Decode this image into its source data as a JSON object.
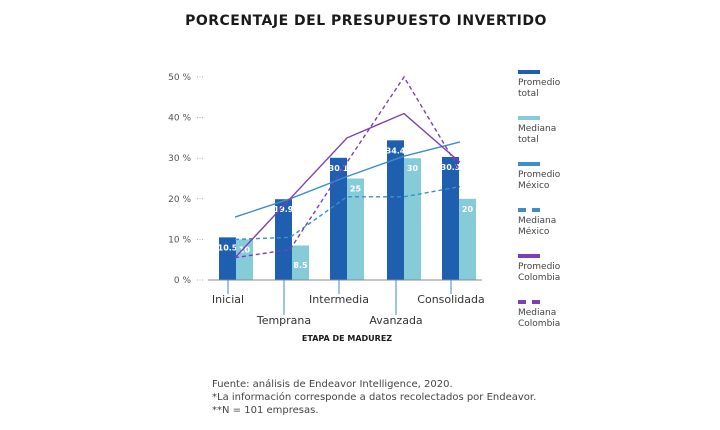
{
  "chart_data": {
    "type": "bar",
    "title": "PORCENTAJE DEL PRESUPUESTO INVERTIDO",
    "xlabel": "ETAPA DE MADUREZ",
    "ylabel": "",
    "ylim": [
      0,
      50
    ],
    "yticks": [
      0,
      10,
      20,
      30,
      40,
      50
    ],
    "ytick_labels": [
      "0 %",
      "10 %",
      "20 %",
      "30 %",
      "40 %",
      "50 %"
    ],
    "categories": [
      "Inicial",
      "Temprana",
      "Intermedia",
      "Avanzada",
      "Consolidada"
    ],
    "bar_series": [
      {
        "name": "Promedio total",
        "color": "#1f5fb0",
        "values": [
          10.5,
          19.9,
          30.1,
          34.4,
          30.3
        ],
        "labels": [
          "10.5",
          "19.9",
          "30.1",
          "34.4",
          "30.3"
        ]
      },
      {
        "name": "Mediana total",
        "color": "#86ccd8",
        "values": [
          10,
          8.5,
          25,
          30,
          20
        ],
        "labels": [
          "10",
          "8.5",
          "25",
          "30",
          "20"
        ]
      }
    ],
    "line_series": [
      {
        "name": "Promedio México",
        "color": "#3d8ec9",
        "dash": "solid",
        "values": [
          15.5,
          20,
          25.5,
          30.5,
          34
        ]
      },
      {
        "name": "Mediana México",
        "color": "#3d8ec9",
        "dash": "dashed",
        "values": [
          10,
          10.5,
          20.5,
          20.5,
          23
        ]
      },
      {
        "name": "Promedio Colombia",
        "color": "#7b3fb8",
        "dash": "solid",
        "values": [
          5.5,
          20,
          35,
          41,
          29
        ]
      },
      {
        "name": "Mediana Colombia",
        "color": "#7b3fb8",
        "dash": "dashed",
        "values": [
          5.5,
          7.5,
          29,
          50,
          27
        ]
      }
    ],
    "legend": [
      {
        "line1": "Promedio",
        "line2": "total",
        "color": "#1f5fb0",
        "style": "solid"
      },
      {
        "line1": "Mediana",
        "line2": "total",
        "color": "#86ccd8",
        "style": "solid"
      },
      {
        "line1": "Promedio",
        "line2": "México",
        "color": "#3d8ec9",
        "style": "solid"
      },
      {
        "line1": "Mediana",
        "line2": "México",
        "color": "#3d8ec9",
        "style": "dashed"
      },
      {
        "line1": "Promedio",
        "line2": "Colombia",
        "color": "#7b3fb8",
        "style": "solid"
      },
      {
        "line1": "Mediana",
        "line2": "Colombia",
        "color": "#7b3fb8",
        "style": "dashed"
      }
    ],
    "legend_position": "right",
    "grid": false
  },
  "footer": {
    "source": "Fuente: análisis de Endeavor Intelligence, 2020.",
    "note1": "*La información corresponde a datos recolectados por Endeavor.",
    "note2": "**N = 101 empresas."
  }
}
